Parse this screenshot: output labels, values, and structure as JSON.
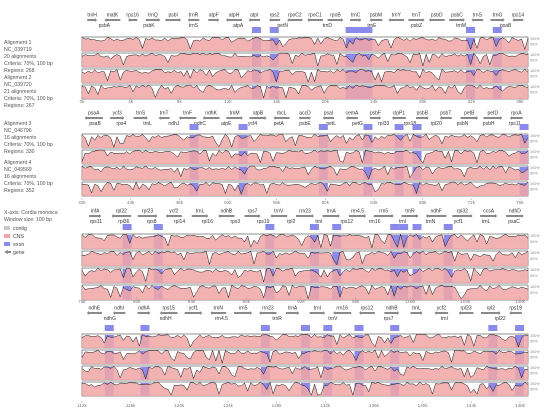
{
  "colors": {
    "gene": "#8a8a8a",
    "exon": "#8a8aee",
    "cns": "#f2a6a6",
    "contig": "#c8c8c8",
    "frame": "#222222",
    "outline": "#111111"
  },
  "alignments": [
    {
      "label": "Alignment 1",
      "acc": "NC_039719",
      "count": "20 alignments",
      "criteria": "Criteria: 70%, 100 bp",
      "regions": "Regions: 268"
    },
    {
      "label": "Alignment 2",
      "acc": "NC_039720",
      "count": "21 alignments",
      "criteria": "Criteria: 70%, 100 bp",
      "regions": "Regions: 267"
    },
    {
      "label": "Alignment 3",
      "acc": "NC_046796",
      "count": "16 alignments",
      "criteria": "Criteria: 70%, 100 bp",
      "regions": "Regions: 330"
    },
    {
      "label": "Alignment 4",
      "acc": "NC_049569",
      "count": "16 alignments",
      "criteria": "Criteria: 70%, 100 bp",
      "regions": "Regions: 352"
    }
  ],
  "info": {
    "xaxis": "X-axis: Cordia monoica",
    "window": "Window size: 100 bp"
  },
  "legend": [
    {
      "label": "contig",
      "key": "contig"
    },
    {
      "label": "CNS",
      "key": "cns"
    },
    {
      "label": "exon",
      "key": "exon"
    },
    {
      "label": "gene",
      "key": "gene"
    }
  ],
  "pct_labels": [
    "100%",
    "50%"
  ],
  "panels": [
    {
      "ticks": [
        "0k",
        "4k",
        "8k",
        "12k",
        "16k",
        "20k",
        "24k",
        "28k",
        "32k",
        "36k"
      ],
      "genes_top": [
        "trnH",
        "matK",
        "rps16",
        "trnQ",
        "psbI",
        "trnR",
        "atpF",
        "atpH",
        "atpI",
        "rps2",
        "rpoC2",
        "rpoC1",
        "rpoB",
        "trnC",
        "psbM",
        "trnY",
        "trnT",
        "psbD",
        "psbC",
        "trnS",
        "trnG",
        "rps14"
      ],
      "genes_bottom": [
        "psbA",
        "psbK",
        "trnS",
        "atpA",
        "petN",
        "trnD",
        "trnE",
        "psbZ",
        "trnM",
        "psaB"
      ],
      "exons": [
        0.39,
        0.43,
        0.6,
        0.62,
        0.64,
        0.87,
        0.93
      ]
    },
    {
      "ticks": [
        "40k",
        "44k",
        "48k",
        "52k",
        "56k",
        "60k",
        "64k",
        "68k",
        "72k",
        "76k"
      ],
      "genes_top": [
        "psaA",
        "ycf3",
        "trnS",
        "trnT",
        "trnF",
        "ndhK",
        "trnM",
        "atpB",
        "rbcL",
        "accD",
        "psaI",
        "cemA",
        "psbF",
        "clpP1",
        "psbB",
        "psbT",
        "petB",
        "petD",
        "rpoA"
      ],
      "genes_bottom": [
        "psaB",
        "rps4",
        "trnL",
        "ndhJ",
        "ndhC",
        "atpE",
        "ycf4",
        "petA",
        "psbE",
        "petL",
        "petG",
        "rpl33",
        "rps18",
        "rpl20",
        "psbN",
        "psbH",
        "rps11"
      ],
      "exons": [
        0.25,
        0.36,
        0.54,
        0.64,
        0.71,
        0.75,
        0.99
      ]
    },
    {
      "ticks": [
        "76k",
        "80k",
        "84k",
        "88k",
        "92k",
        "96k",
        "100k",
        "104k",
        "108k"
      ],
      "genes_top": [
        "infA",
        "rpl22",
        "rpl23",
        "ycf2",
        "trnL",
        "ndhB",
        "rps7",
        "trnV",
        "rrn23",
        "trnA",
        "rrn4.5",
        "rrn5",
        "trnR",
        "ndhF",
        "rpl32",
        "ccsA",
        "ndhD"
      ],
      "genes_bottom": [
        "rps11",
        "rpl36",
        "rps8",
        "rpl14",
        "rpl16",
        "rps3",
        "rps19",
        "rpl2",
        "trnI",
        "rps12",
        "rrn16",
        "trnI",
        "trnN",
        "ycf1",
        "trnL",
        "psaC"
      ],
      "exons": [
        0.1,
        0.17,
        0.42,
        0.52,
        0.57,
        0.7,
        0.72,
        0.75,
        0.82
      ]
    },
    {
      "ticks": [
        "112k",
        "116k",
        "120k",
        "124k",
        "128k",
        "132k",
        "136k",
        "140k",
        "144k",
        "148k"
      ],
      "genes_top": [
        "ndhE",
        "ndhI",
        "ndhA",
        "rps15",
        "ycf1",
        "trnN",
        "rrn5",
        "rrn23",
        "trnA",
        "trnI",
        "rrn16",
        "rps12",
        "ndhB",
        "trnL",
        "ycf2",
        "rpl23",
        "rpl2",
        "rps19"
      ],
      "genes_bottom": [
        "ndhG",
        "ndhH",
        "rrn4.5",
        "trnR",
        "trnV",
        "rps7",
        "trnI",
        "rpl22"
      ],
      "exons": [
        0.06,
        0.14,
        0.41,
        0.5,
        0.55,
        0.62,
        0.7,
        0.92,
        0.98
      ]
    }
  ]
}
